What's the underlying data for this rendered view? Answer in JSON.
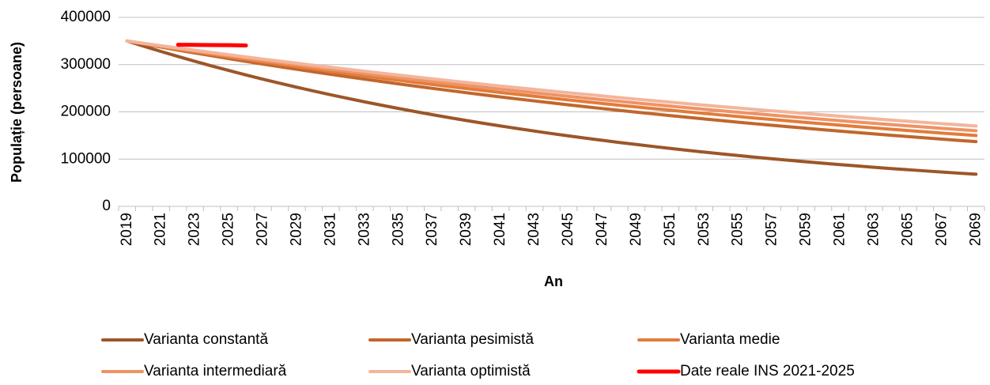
{
  "chart_data": {
    "type": "line",
    "x_label": "An",
    "y_label": "Populație (persoane)",
    "categories": [
      "2019",
      null,
      "2021",
      null,
      "2023",
      null,
      "2025",
      null,
      "2027",
      null,
      "2029",
      null,
      "2031",
      null,
      "2033",
      null,
      "2035",
      null,
      "2037",
      null,
      "2039",
      null,
      "2041",
      null,
      "2043",
      null,
      "2045",
      null,
      "2047",
      null,
      "2049",
      null,
      "2051",
      null,
      "2053",
      null,
      "2055",
      null,
      "2057",
      null,
      "2059",
      null,
      "2061",
      null,
      "2063",
      null,
      "2065",
      null,
      "2067",
      null,
      "2069"
    ],
    "ylim": [
      0,
      400000
    ],
    "yticks": [
      0,
      100000,
      200000,
      300000,
      400000
    ],
    "grid": true,
    "legend": "bottom",
    "series": [
      {
        "name": "Varianta constantă",
        "color": "#9c5628",
        "values": [
          350000,
          338700,
          327800,
          317200,
          307000,
          297000,
          287500,
          278200,
          269200,
          260500,
          252100,
          244000,
          236100,
          228500,
          221100,
          214000,
          207100,
          200400,
          193900,
          187700,
          181600,
          175700,
          170100,
          164600,
          159300,
          154100,
          149200,
          144300,
          139700,
          135200,
          130900,
          126700,
          122600,
          118600,
          114800,
          111100,
          107500,
          104000,
          100700,
          97400,
          94300,
          91300,
          88300,
          85500,
          82700,
          80000,
          77500,
          75000,
          72500,
          70200,
          67900
        ]
      },
      {
        "name": "Varianta pesimistă",
        "color": "#c2662c",
        "values": [
          350000,
          343500,
          337100,
          330800,
          324700,
          318700,
          312700,
          306900,
          301200,
          295600,
          290100,
          284700,
          279400,
          274300,
          269200,
          264200,
          259200,
          254400,
          249700,
          245100,
          240500,
          236000,
          231600,
          227300,
          223100,
          219000,
          214900,
          210900,
          207000,
          203100,
          199400,
          195700,
          192000,
          188500,
          185000,
          181500,
          178100,
          174800,
          171600,
          168400,
          165300,
          162200,
          159200,
          156200,
          153300,
          150500,
          147700,
          144900,
          142200,
          139600,
          137000
        ]
      },
      {
        "name": "Varianta medie",
        "color": "#e27c3a",
        "values": [
          350000,
          344100,
          338300,
          332600,
          327100,
          321600,
          316200,
          310800,
          305600,
          300500,
          295400,
          290500,
          285600,
          280800,
          276100,
          271400,
          266900,
          262400,
          258000,
          253600,
          249400,
          245200,
          241000,
          237000,
          233000,
          229100,
          225200,
          221500,
          217700,
          214100,
          210500,
          206900,
          203500,
          200000,
          196700,
          193400,
          190100,
          186900,
          183800,
          180700,
          177700,
          174700,
          171700,
          168800,
          166000,
          163200,
          160500,
          157800,
          155100,
          152500,
          149900
        ]
      },
      {
        "name": "Varianta intermediară",
        "color": "#ee9366",
        "values": [
          350000,
          344600,
          339200,
          333900,
          328700,
          323600,
          318600,
          313700,
          308800,
          304000,
          299300,
          294600,
          290000,
          285500,
          281100,
          276700,
          272400,
          268200,
          264000,
          259900,
          255900,
          251900,
          248000,
          244100,
          240400,
          236600,
          232900,
          229300,
          225800,
          222300,
          218800,
          215400,
          212100,
          208800,
          205500,
          202300,
          199200,
          196100,
          193000,
          190000,
          187100,
          184200,
          181300,
          178500,
          175700,
          173000,
          170300,
          167700,
          165100,
          162500,
          160000
        ]
      },
      {
        "name": "Varianta optimistă",
        "color": "#f3b59b",
        "values": [
          350000,
          345000,
          340000,
          335200,
          330400,
          325600,
          321000,
          316300,
          311800,
          307300,
          302900,
          298600,
          294300,
          290100,
          285900,
          281800,
          277800,
          273800,
          269900,
          266000,
          262200,
          258400,
          254700,
          251100,
          247500,
          243900,
          240400,
          237000,
          233600,
          230200,
          226900,
          223700,
          220500,
          217300,
          214200,
          211100,
          208100,
          205100,
          202200,
          199300,
          196400,
          193600,
          190800,
          188100,
          185400,
          182700,
          180100,
          177500,
          175000,
          172500,
          170000
        ]
      },
      {
        "name": "Date reale INS 2021-2025",
        "color": "#ff0000",
        "values": [
          null,
          null,
          null,
          342000,
          341800,
          341500,
          341200,
          340500,
          null,
          null,
          null,
          null,
          null,
          null,
          null,
          null,
          null,
          null,
          null,
          null,
          null,
          null,
          null,
          null,
          null,
          null,
          null,
          null,
          null,
          null,
          null,
          null,
          null,
          null,
          null,
          null,
          null,
          null,
          null,
          null,
          null,
          null,
          null,
          null,
          null,
          null,
          null,
          null,
          null,
          null,
          null
        ]
      }
    ]
  }
}
